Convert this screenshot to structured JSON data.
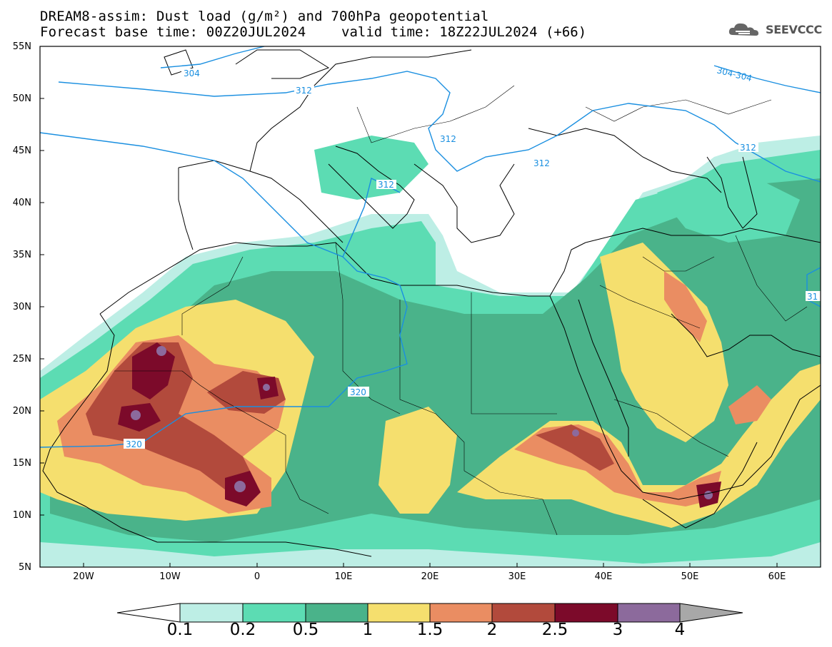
{
  "header": {
    "title": "DREAM8-assim: Dust load (g/m²) and 700hPa geopotential",
    "base_time": "Forecast base time: 00Z20JUL2024",
    "valid_time": "valid time: 18Z22JUL2024 (+66)",
    "logo_text": "SEEVCCC"
  },
  "map": {
    "lon_range": [
      -25,
      65
    ],
    "lat_range": [
      5,
      55
    ],
    "lat_ticks": [
      "55N",
      "50N",
      "45N",
      "40N",
      "35N",
      "30N",
      "25N",
      "20N",
      "15N",
      "10N",
      "5N"
    ],
    "lon_ticks": [
      "20W",
      "10W",
      "0",
      "10E",
      "20E",
      "30E",
      "40E",
      "50E",
      "60E"
    ],
    "contour_labels": [
      "304",
      "312",
      "304-304",
      "312",
      "312",
      "312",
      "312",
      "320",
      "320",
      "31"
    ],
    "dust_hotspot_icon": "dust-plume"
  },
  "colorbar": {
    "labels": [
      "0.1",
      "0.2",
      "0.5",
      "1",
      "1.5",
      "2",
      "2.5",
      "3",
      "4"
    ],
    "colors": [
      "#ffffff",
      "#bdeee5",
      "#5cdcb3",
      "#4ab38a",
      "#f5df6e",
      "#ea8d62",
      "#b24a3c",
      "#7c0a2a",
      "#8c6a9c",
      "#a8a8a8"
    ]
  }
}
